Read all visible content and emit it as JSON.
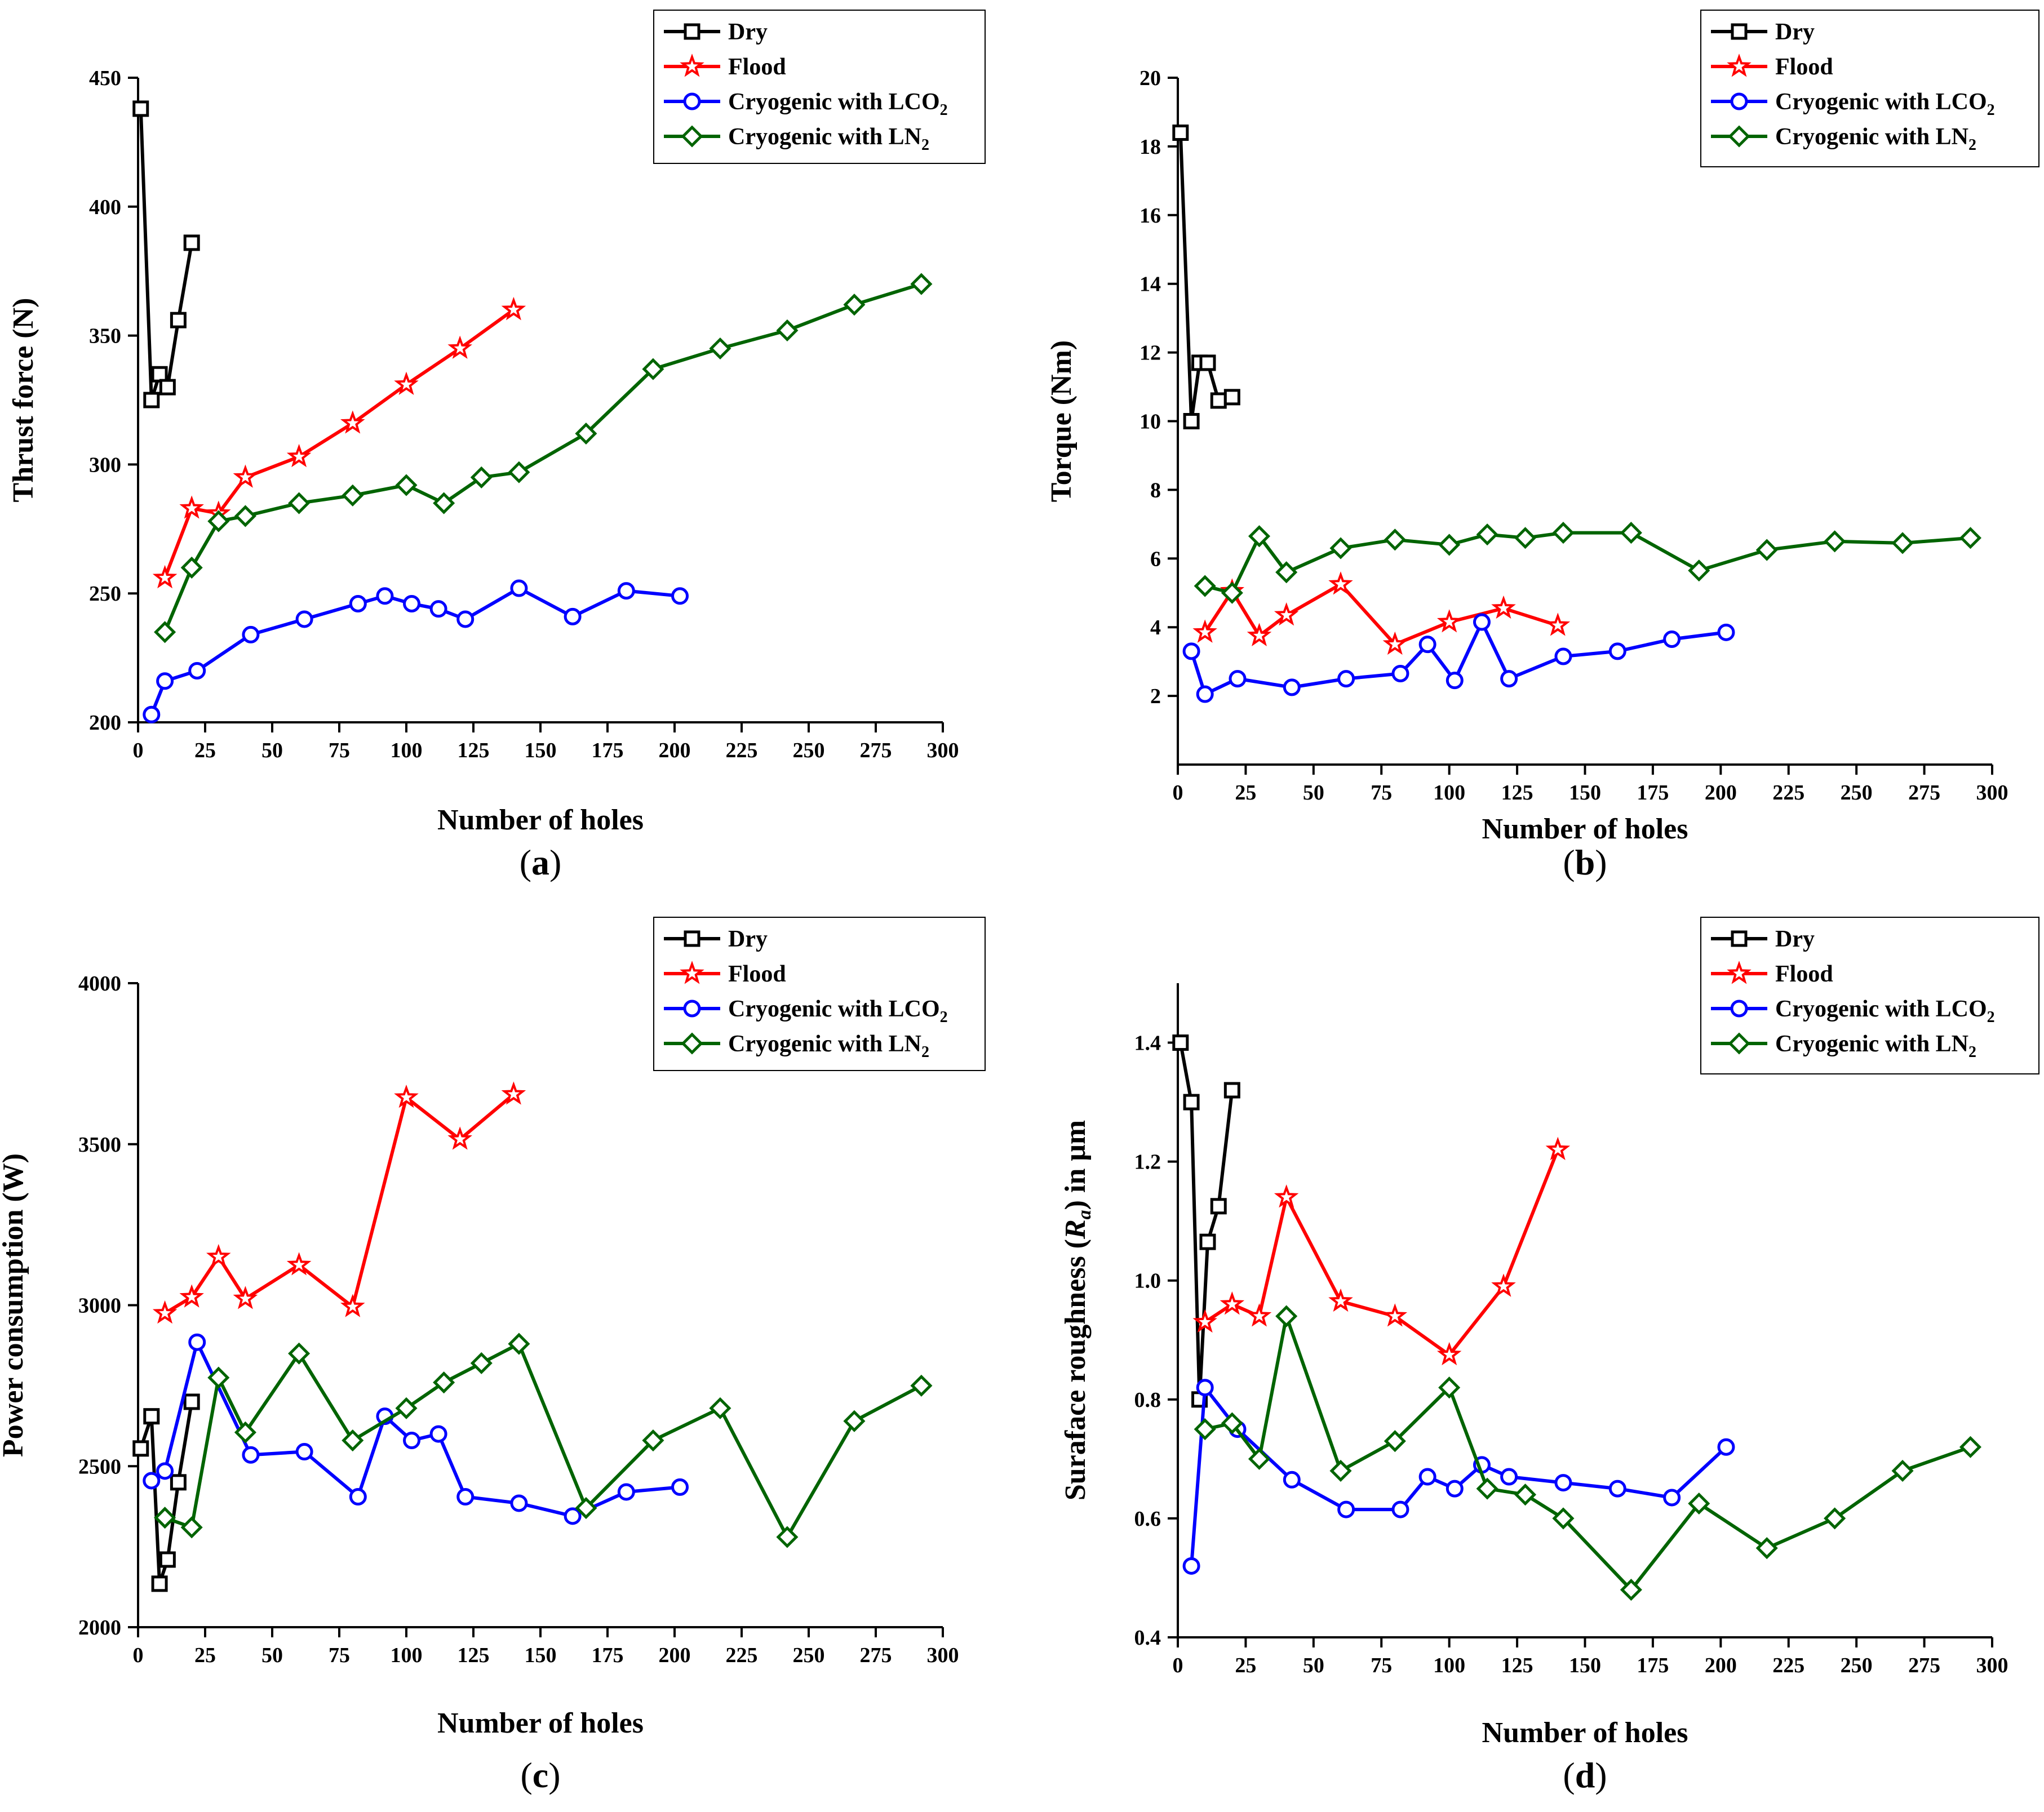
{
  "colors": {
    "Dry": "#000000",
    "Flood": "#ff0000",
    "LCO2": "#0000ff",
    "LN2": "#006400"
  },
  "legend": {
    "dry": "Dry",
    "flood": "Flood",
    "lco2_main": "Cryogenic with LCO",
    "lco2_sub": "2",
    "ln2_main": "Cryogenic with LN",
    "ln2_sub": "2"
  },
  "chart_data": [
    {
      "type": "line",
      "panel_label": "a",
      "xlabel": "Number of holes",
      "ylabel": "Thrust force (N)",
      "xlim": [
        0,
        300
      ],
      "ylim": [
        200,
        450
      ],
      "xticks": [
        0,
        25,
        50,
        75,
        100,
        125,
        150,
        175,
        200,
        225,
        250,
        275,
        300
      ],
      "yticks": [
        200,
        250,
        300,
        350,
        400,
        450
      ],
      "legend_position": "top-right",
      "series": [
        {
          "name": "Dry",
          "marker": "square",
          "x": [
            1,
            5,
            8,
            11,
            15,
            20
          ],
          "y": [
            438,
            325,
            335,
            330,
            356,
            386
          ]
        },
        {
          "name": "Flood",
          "marker": "star",
          "x": [
            10,
            20,
            30,
            40,
            60,
            80,
            100,
            120,
            140
          ],
          "y": [
            256,
            283,
            281,
            295,
            303,
            316,
            331,
            345,
            360
          ]
        },
        {
          "name": "Cryogenic with LCO2",
          "marker": "circle",
          "x": [
            5,
            10,
            22,
            42,
            62,
            82,
            92,
            102,
            112,
            122,
            142,
            162,
            182,
            202
          ],
          "y": [
            203,
            216,
            220,
            234,
            240,
            246,
            249,
            246,
            244,
            240,
            252,
            241,
            251,
            249
          ]
        },
        {
          "name": "Cryogenic with LN2",
          "marker": "diamond",
          "x": [
            10,
            20,
            30,
            40,
            60,
            80,
            100,
            114,
            128,
            142,
            167,
            192,
            217,
            242,
            267,
            292
          ],
          "y": [
            235,
            260,
            278,
            280,
            285,
            288,
            292,
            285,
            295,
            297,
            312,
            337,
            345,
            352,
            362,
            370
          ]
        }
      ]
    },
    {
      "type": "line",
      "panel_label": "b",
      "xlabel": "Number of holes",
      "ylabel": "Torque (Nm)",
      "xlim": [
        0,
        300
      ],
      "ylim": [
        0,
        20
      ],
      "xticks": [
        0,
        25,
        50,
        75,
        100,
        125,
        150,
        175,
        200,
        225,
        250,
        275,
        300
      ],
      "yticks": [
        2,
        4,
        6,
        8,
        10,
        12,
        14,
        16,
        18,
        20
      ],
      "legend_position": "top-right",
      "series": [
        {
          "name": "Dry",
          "marker": "square",
          "x": [
            1,
            5,
            8,
            11,
            15,
            20
          ],
          "y": [
            18.4,
            10.0,
            11.7,
            11.7,
            10.6,
            10.7
          ]
        },
        {
          "name": "Flood",
          "marker": "star",
          "x": [
            10,
            20,
            30,
            40,
            60,
            80,
            100,
            120,
            140
          ],
          "y": [
            3.85,
            5.05,
            3.75,
            4.35,
            5.25,
            3.5,
            4.15,
            4.55,
            4.05
          ]
        },
        {
          "name": "Cryogenic with LCO2",
          "marker": "circle",
          "x": [
            5,
            10,
            22,
            42,
            62,
            82,
            92,
            102,
            112,
            122,
            142,
            162,
            182,
            202
          ],
          "y": [
            3.3,
            2.05,
            2.5,
            2.25,
            2.5,
            2.65,
            3.5,
            2.45,
            4.15,
            2.5,
            3.15,
            3.3,
            3.65,
            3.85
          ]
        },
        {
          "name": "Cryogenic with LN2",
          "marker": "diamond",
          "x": [
            10,
            20,
            30,
            40,
            60,
            80,
            100,
            114,
            128,
            142,
            167,
            192,
            217,
            242,
            267,
            292
          ],
          "y": [
            5.2,
            5.0,
            6.65,
            5.6,
            6.3,
            6.55,
            6.4,
            6.7,
            6.6,
            6.75,
            6.75,
            5.65,
            6.25,
            6.5,
            6.45,
            6.6
          ]
        }
      ]
    },
    {
      "type": "line",
      "panel_label": "c",
      "xlabel": "Number of holes",
      "ylabel": "Power consumption (W)",
      "xlim": [
        0,
        300
      ],
      "ylim": [
        2000,
        4000
      ],
      "xticks": [
        0,
        25,
        50,
        75,
        100,
        125,
        150,
        175,
        200,
        225,
        250,
        275,
        300
      ],
      "yticks": [
        2000,
        2500,
        3000,
        3500,
        4000
      ],
      "legend_position": "top-right",
      "series": [
        {
          "name": "Dry",
          "marker": "square",
          "x": [
            1,
            5,
            8,
            11,
            15,
            20
          ],
          "y": [
            2555,
            2655,
            2135,
            2210,
            2450,
            2700
          ]
        },
        {
          "name": "Flood",
          "marker": "star",
          "x": [
            10,
            20,
            30,
            40,
            60,
            80,
            100,
            120,
            140
          ],
          "y": [
            2975,
            3025,
            3150,
            3020,
            3125,
            2995,
            3645,
            3515,
            3655
          ]
        },
        {
          "name": "Cryogenic with LCO2",
          "marker": "circle",
          "x": [
            5,
            10,
            22,
            42,
            62,
            82,
            92,
            102,
            112,
            122,
            142,
            162,
            182,
            202
          ],
          "y": [
            2455,
            2485,
            2885,
            2535,
            2545,
            2405,
            2655,
            2580,
            2600,
            2405,
            2385,
            2345,
            2420,
            2435
          ]
        },
        {
          "name": "Cryogenic with LN2",
          "marker": "diamond",
          "x": [
            10,
            20,
            30,
            40,
            60,
            80,
            100,
            114,
            128,
            142,
            167,
            192,
            217,
            242,
            267,
            292
          ],
          "y": [
            2340,
            2310,
            2775,
            2605,
            2850,
            2580,
            2680,
            2760,
            2820,
            2880,
            2370,
            2580,
            2680,
            2280,
            2640,
            2750
          ]
        }
      ]
    },
    {
      "type": "line",
      "panel_label": "d",
      "xlabel": "Number of holes",
      "ylabel": "Suraface roughness (Ra) in μm",
      "ylabel_parts": {
        "before": "Suraface roughness (",
        "italic": "R",
        "sub": "a",
        "after": ") in μm"
      },
      "xlim": [
        0,
        300
      ],
      "ylim": [
        0.4,
        1.5
      ],
      "xticks": [
        0,
        25,
        50,
        75,
        100,
        125,
        150,
        175,
        200,
        225,
        250,
        275,
        300
      ],
      "yticks": [
        0.4,
        0.6,
        0.8,
        1.0,
        1.2,
        1.4
      ],
      "legend_position": "top-right",
      "series": [
        {
          "name": "Dry",
          "marker": "square",
          "x": [
            1,
            5,
            8,
            11,
            15,
            20
          ],
          "y": [
            1.4,
            1.3,
            0.8,
            1.065,
            1.125,
            1.32
          ]
        },
        {
          "name": "Flood",
          "marker": "star",
          "x": [
            10,
            20,
            30,
            40,
            60,
            80,
            100,
            120,
            140
          ],
          "y": [
            0.93,
            0.96,
            0.94,
            1.14,
            0.965,
            0.94,
            0.875,
            0.99,
            1.22
          ]
        },
        {
          "name": "Cryogenic with LCO2",
          "marker": "circle",
          "x": [
            5,
            10,
            22,
            42,
            62,
            82,
            92,
            102,
            112,
            122,
            142,
            162,
            182,
            202
          ],
          "y": [
            0.52,
            0.82,
            0.75,
            0.665,
            0.615,
            0.615,
            0.67,
            0.65,
            0.69,
            0.67,
            0.66,
            0.65,
            0.635,
            0.72
          ]
        },
        {
          "name": "Cryogenic with LN2",
          "marker": "diamond",
          "x": [
            10,
            20,
            30,
            40,
            60,
            80,
            100,
            114,
            128,
            142,
            167,
            192,
            217,
            242,
            267,
            292
          ],
          "y": [
            0.75,
            0.76,
            0.7,
            0.94,
            0.68,
            0.73,
            0.82,
            0.65,
            0.64,
            0.6,
            0.48,
            0.625,
            0.55,
            0.6,
            0.68,
            0.72
          ]
        }
      ]
    }
  ]
}
